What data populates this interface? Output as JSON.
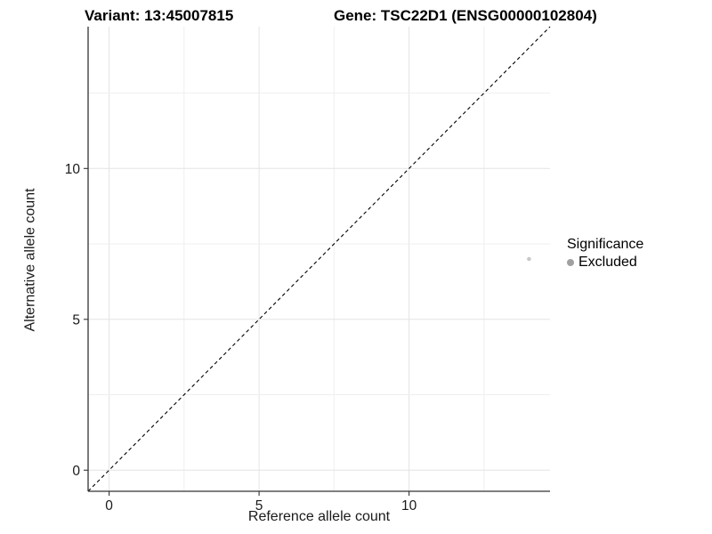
{
  "chart_data": {
    "type": "scatter",
    "title_left": "Variant: 13:45007815",
    "title_right": "Gene: TSC22D1 (ENSG00000102804)",
    "xlabel": "Reference allele count",
    "ylabel": "Alternative allele count",
    "xlim": [
      -0.7,
      14.7
    ],
    "ylim": [
      -0.7,
      14.7
    ],
    "x_ticks": [
      0,
      5,
      10
    ],
    "y_ticks": [
      0,
      5,
      10
    ],
    "x_grid": [
      0,
      2.5,
      5,
      7.5,
      10,
      12.5
    ],
    "y_grid": [
      0,
      2.5,
      5,
      7.5,
      10,
      12.5
    ],
    "identity_line": {
      "from": [
        -0.7,
        -0.7
      ],
      "to": [
        14.7,
        14.7
      ],
      "style": "dashed",
      "color": "#000000"
    },
    "points": [
      {
        "x": 14,
        "y": 7,
        "significance": "Excluded",
        "color": "#c9c9c9",
        "radius": 2.3
      }
    ],
    "legend": {
      "title": "Significance",
      "items": [
        {
          "label": "Excluded",
          "color": "#a0a0a0"
        }
      ]
    },
    "colors": {
      "axis": "#333333",
      "tick_label": "#1a1a1a",
      "grid_major": "#e4e4e4",
      "grid_minor": "#efefef",
      "panel_bg": "#ffffff"
    }
  }
}
